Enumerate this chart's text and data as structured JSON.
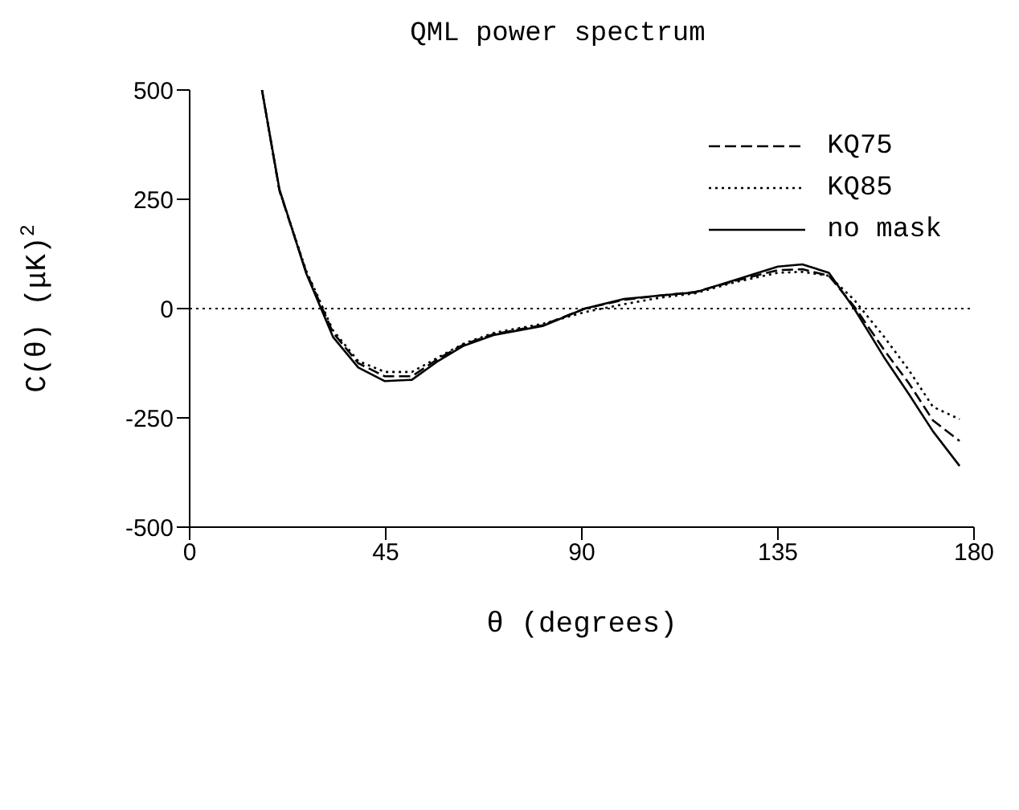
{
  "chart_data": {
    "type": "line",
    "title": "QML power spectrum",
    "xlabel": "θ (degrees)",
    "ylabel": "C(θ)  (μK)$^{2}$",
    "x": [
      16.6,
      20.6,
      26.7,
      32.9,
      38.7,
      44.8,
      51,
      57,
      62.9,
      70,
      81,
      90.7,
      99.7,
      108,
      116,
      125,
      135,
      140.6,
      146.7,
      152.5,
      159.4,
      165,
      170.6,
      176.7
    ],
    "series": [
      {
        "name": "KQ75",
        "color": "#000000",
        "line_style": "dashed",
        "values": [
          500,
          270,
          85,
          -55,
          -125,
          -155,
          -155,
          -115,
          -82,
          -58,
          -38,
          0,
          20,
          30,
          38,
          63,
          88,
          90,
          75,
          5,
          -95,
          -170,
          -256,
          -303
        ]
      },
      {
        "name": "KQ85",
        "color": "#000000",
        "line_style": "dotted",
        "values": [
          500,
          270,
          88,
          -50,
          -120,
          -145,
          -145,
          -112,
          -80,
          -55,
          -35,
          -8,
          10,
          25,
          35,
          60,
          82,
          84,
          75,
          20,
          -65,
          -140,
          -225,
          -253
        ]
      },
      {
        "name": "no mask",
        "color": "#000000",
        "line_style": "solid",
        "values": [
          500,
          273,
          82,
          -65,
          -135,
          -166,
          -163,
          -120,
          -85,
          -60,
          -40,
          0,
          22,
          30,
          37,
          65,
          96,
          101,
          82,
          0,
          -112,
          -195,
          -281,
          -360
        ]
      }
    ],
    "xlim": [
      0,
      180
    ],
    "xticks": [
      0,
      45,
      90,
      135,
      180
    ],
    "ylim": [
      -500,
      500
    ],
    "yticks": [
      -500,
      -250,
      0,
      250,
      500
    ],
    "ref_lines": [
      {
        "axis": "y",
        "value": 0,
        "line_style": "dotted"
      }
    ],
    "legend": "top right",
    "grid": false
  }
}
